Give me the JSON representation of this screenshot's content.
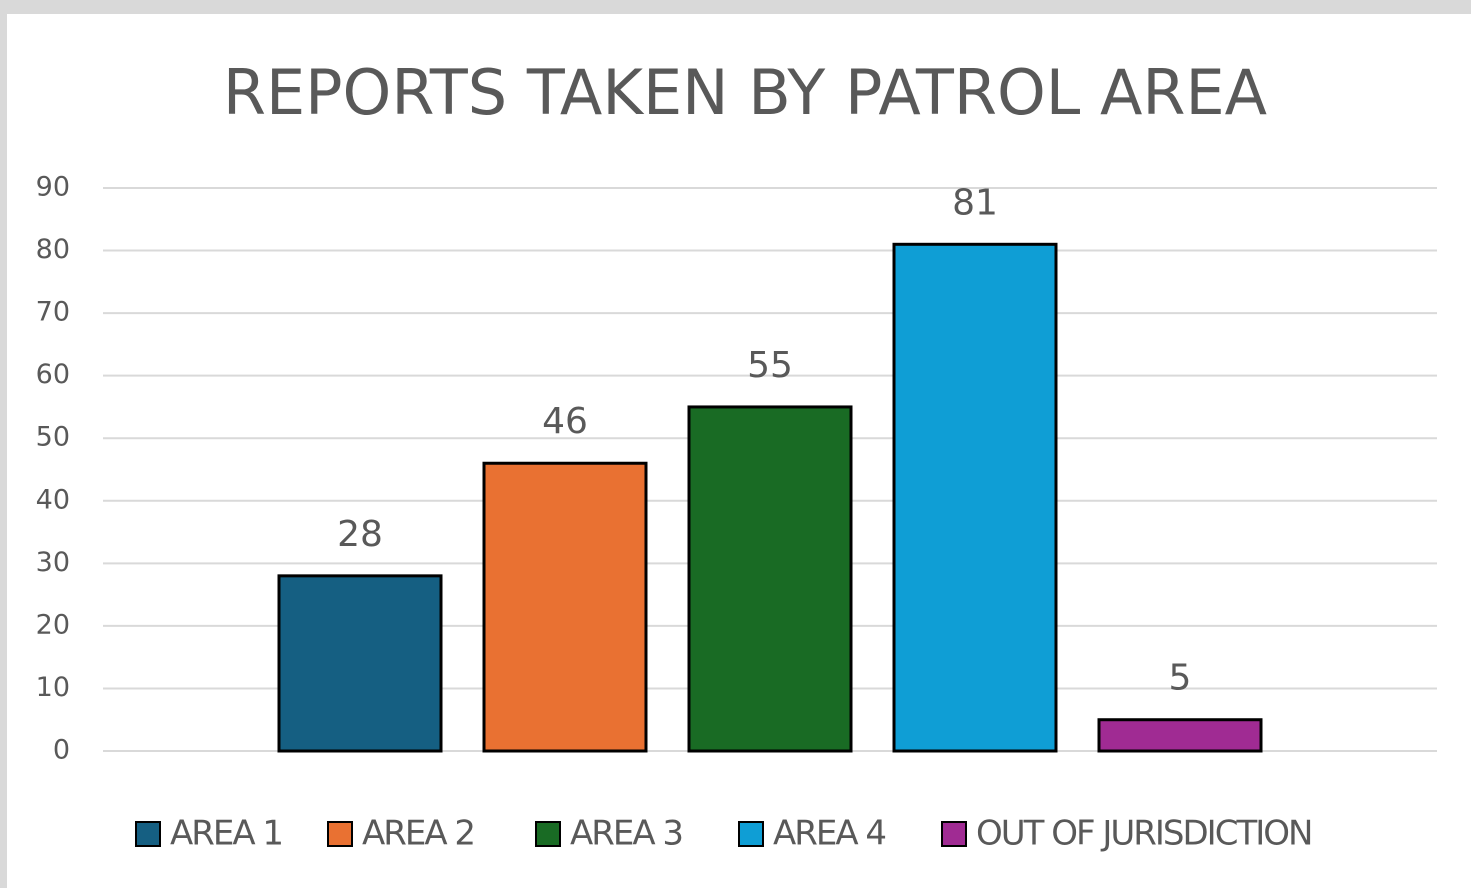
{
  "chart_data": {
    "type": "bar",
    "title": "REPORTS TAKEN BY PATROL AREA",
    "categories": [
      null
    ],
    "series": [
      {
        "name": "AREA 1",
        "color": "#155f82",
        "values": [
          28
        ]
      },
      {
        "name": "AREA 2",
        "color": "#e97132",
        "values": [
          46
        ]
      },
      {
        "name": "AREA 3",
        "color": "#196b24",
        "values": [
          55
        ]
      },
      {
        "name": "AREA 4",
        "color": "#0f9ed5",
        "values": [
          81
        ]
      },
      {
        "name": "OUT OF JURISDICTION",
        "color": "#a02b93",
        "values": [
          5
        ]
      }
    ],
    "ylim": [
      0,
      90
    ],
    "yticks": [
      0,
      10,
      20,
      30,
      40,
      50,
      60,
      70,
      80,
      90
    ],
    "grid": true,
    "legend": "bottom"
  }
}
